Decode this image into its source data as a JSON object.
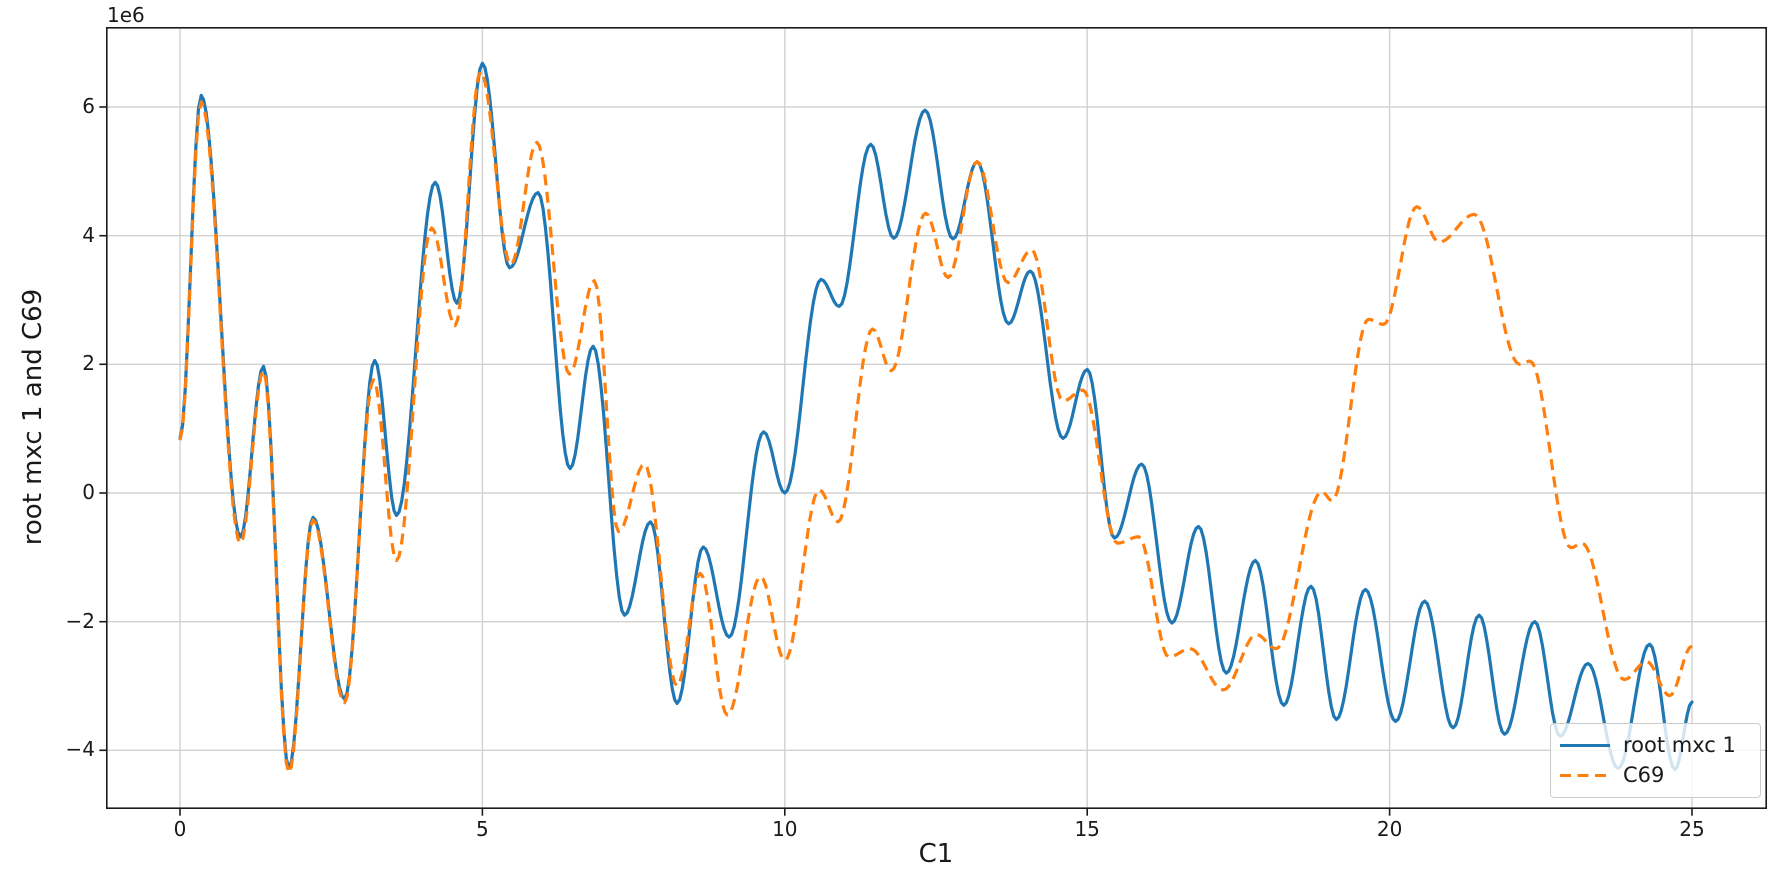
{
  "figure": {
    "background": "#ffffff",
    "axes": {
      "offset_text": "1e6",
      "x_ticks": [
        0,
        5,
        10,
        15,
        20,
        25
      ],
      "x_tick_labels": [
        "0",
        "5",
        "10",
        "15",
        "20",
        "25"
      ],
      "y_ticks": [
        6,
        4,
        2,
        0,
        -2,
        -4
      ],
      "y_tick_labels": [
        "6",
        "4",
        "2",
        "0",
        "−2",
        "−4"
      ],
      "grid_color": "#d2d2d2",
      "spine_color": "#1a1a1a",
      "tick_color": "#1a1a1a"
    },
    "legend": {
      "position": "lower right",
      "border_color": "#cccccc"
    }
  },
  "chart_data": {
    "type": "line",
    "title": "",
    "xlabel": "C1",
    "ylabel": "root mxc 1 and C69",
    "y_unit_multiplier": "1e6",
    "xlim": [
      -1.22,
      26.24
    ],
    "ylim": [
      -4.9,
      7.24
    ],
    "grid": true,
    "legend_position": "lower right",
    "series": [
      {
        "name": "root mxc 1",
        "color": "#1f77b4",
        "style": "solid",
        "points": [
          [
            0,
            0.85
          ],
          [
            0.35,
            6.18
          ],
          [
            1.0,
            -0.68
          ],
          [
            1.38,
            1.97
          ],
          [
            1.8,
            -4.28
          ],
          [
            2.2,
            -0.38
          ],
          [
            2.72,
            -3.2
          ],
          [
            3.22,
            2.06
          ],
          [
            3.58,
            -0.35
          ],
          [
            4.22,
            4.83
          ],
          [
            4.58,
            2.95
          ],
          [
            5.0,
            6.68
          ],
          [
            5.45,
            3.5
          ],
          [
            5.92,
            4.67
          ],
          [
            6.45,
            0.38
          ],
          [
            6.83,
            2.28
          ],
          [
            7.35,
            -1.9
          ],
          [
            7.78,
            -0.45
          ],
          [
            8.22,
            -3.27
          ],
          [
            8.65,
            -0.84
          ],
          [
            9.08,
            -2.24
          ],
          [
            9.65,
            0.95
          ],
          [
            10.0,
            0.0
          ],
          [
            10.6,
            3.32
          ],
          [
            10.9,
            2.9
          ],
          [
            11.42,
            5.42
          ],
          [
            11.8,
            3.96
          ],
          [
            12.32,
            5.95
          ],
          [
            12.78,
            3.95
          ],
          [
            13.18,
            5.15
          ],
          [
            13.7,
            2.63
          ],
          [
            14.06,
            3.45
          ],
          [
            14.6,
            0.85
          ],
          [
            15.0,
            1.92
          ],
          [
            15.45,
            -0.7
          ],
          [
            15.9,
            0.45
          ],
          [
            16.4,
            -2.02
          ],
          [
            16.84,
            -0.52
          ],
          [
            17.3,
            -2.8
          ],
          [
            17.78,
            -1.05
          ],
          [
            18.25,
            -3.3
          ],
          [
            18.7,
            -1.45
          ],
          [
            19.12,
            -3.52
          ],
          [
            19.6,
            -1.5
          ],
          [
            20.1,
            -3.55
          ],
          [
            20.58,
            -1.68
          ],
          [
            21.05,
            -3.65
          ],
          [
            21.48,
            -1.9
          ],
          [
            21.9,
            -3.75
          ],
          [
            22.4,
            -2.0
          ],
          [
            22.82,
            -3.78
          ],
          [
            23.28,
            -2.65
          ],
          [
            23.78,
            -4.28
          ],
          [
            24.3,
            -2.35
          ],
          [
            24.72,
            -4.3
          ],
          [
            25.0,
            -3.25
          ]
        ]
      },
      {
        "name": "C69",
        "color": "#ff7f0e",
        "style": "dashed",
        "points": [
          [
            0,
            0.82
          ],
          [
            0.35,
            6.08
          ],
          [
            1.0,
            -0.78
          ],
          [
            1.38,
            1.9
          ],
          [
            1.8,
            -4.35
          ],
          [
            2.2,
            -0.42
          ],
          [
            2.72,
            -3.26
          ],
          [
            3.2,
            1.76
          ],
          [
            3.58,
            -1.05
          ],
          [
            4.16,
            4.12
          ],
          [
            4.55,
            2.6
          ],
          [
            4.97,
            6.55
          ],
          [
            5.47,
            3.55
          ],
          [
            5.9,
            5.45
          ],
          [
            6.44,
            1.85
          ],
          [
            6.85,
            3.3
          ],
          [
            7.25,
            -0.6
          ],
          [
            7.68,
            0.45
          ],
          [
            8.22,
            -3.0
          ],
          [
            8.6,
            -1.25
          ],
          [
            9.05,
            -3.45
          ],
          [
            9.6,
            -1.3
          ],
          [
            10.0,
            -2.6
          ],
          [
            10.57,
            0.05
          ],
          [
            10.88,
            -0.45
          ],
          [
            11.45,
            2.55
          ],
          [
            11.76,
            1.9
          ],
          [
            12.33,
            4.35
          ],
          [
            12.7,
            3.35
          ],
          [
            13.18,
            5.15
          ],
          [
            13.69,
            3.27
          ],
          [
            14.08,
            3.78
          ],
          [
            14.6,
            1.43
          ],
          [
            14.93,
            1.6
          ],
          [
            15.5,
            -0.78
          ],
          [
            15.85,
            -0.68
          ],
          [
            16.35,
            -2.55
          ],
          [
            16.7,
            -2.42
          ],
          [
            17.25,
            -3.06
          ],
          [
            17.8,
            -2.2
          ],
          [
            18.12,
            -2.42
          ],
          [
            18.88,
            0.02
          ],
          [
            19.05,
            -0.12
          ],
          [
            19.65,
            2.7
          ],
          [
            19.9,
            2.62
          ],
          [
            20.45,
            4.45
          ],
          [
            20.82,
            3.9
          ],
          [
            21.4,
            4.33
          ],
          [
            22.15,
            2.0
          ],
          [
            22.32,
            2.05
          ],
          [
            23.0,
            -0.85
          ],
          [
            23.18,
            -0.78
          ],
          [
            23.88,
            -2.9
          ],
          [
            24.25,
            -2.62
          ],
          [
            24.63,
            -3.15
          ],
          [
            25.0,
            -2.38
          ]
        ]
      }
    ]
  }
}
